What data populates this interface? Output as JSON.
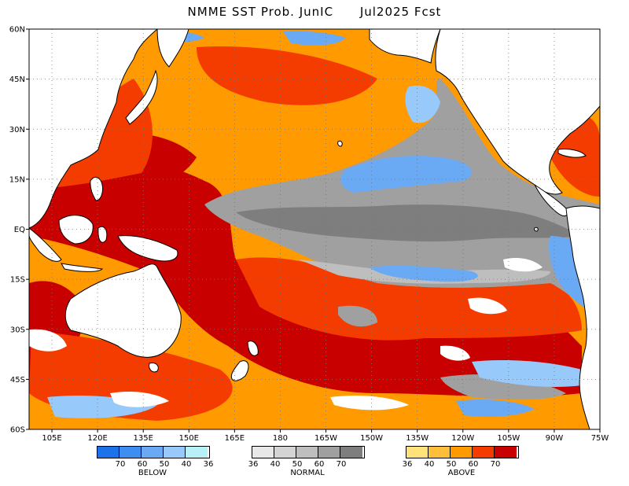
{
  "title": {
    "model": "NMME SST Prob. JunIC",
    "target": "Jul2025 Fcst"
  },
  "axes": {
    "lon_labels": [
      "105E",
      "120E",
      "135E",
      "150E",
      "165E",
      "180",
      "165W",
      "150W",
      "135W",
      "120W",
      "105W",
      "90W",
      "75W"
    ],
    "lat_labels": [
      "60N",
      "45N",
      "30N",
      "15N",
      "EQ",
      "15S",
      "30S",
      "45S",
      "60S"
    ]
  },
  "map_data": {
    "projection": "cylindrical",
    "lon_range": [
      97.5,
      285.0
    ],
    "lat_range": [
      -60,
      60
    ],
    "gridlines": "dotted",
    "grid_lon_step": 15,
    "grid_lat_step": 15
  },
  "legend": {
    "below": {
      "label": "BELOW",
      "colors": [
        "#1c72e8",
        "#3d8ef0",
        "#6aaaf4",
        "#97c9fa",
        "#b8f0f8"
      ],
      "numbers": [
        "70",
        "60",
        "50",
        "40",
        "36"
      ]
    },
    "normal": {
      "label": "NORMAL",
      "colors": [
        "#e8e8e8",
        "#d4d4d4",
        "#bebebe",
        "#a0a0a0",
        "#7e7e7e"
      ],
      "numbers": [
        "36",
        "40",
        "50",
        "60",
        "70"
      ]
    },
    "above": {
      "label": "ABOVE",
      "colors": [
        "#ffe27a",
        "#ffbf3a",
        "#ff9a00",
        "#f53c00",
        "#c90000"
      ],
      "numbers": [
        "36",
        "40",
        "50",
        "60",
        "70"
      ]
    }
  },
  "colors": {
    "land": "#ffffff",
    "coast": "#000000",
    "no_signal": "#ffffff"
  }
}
